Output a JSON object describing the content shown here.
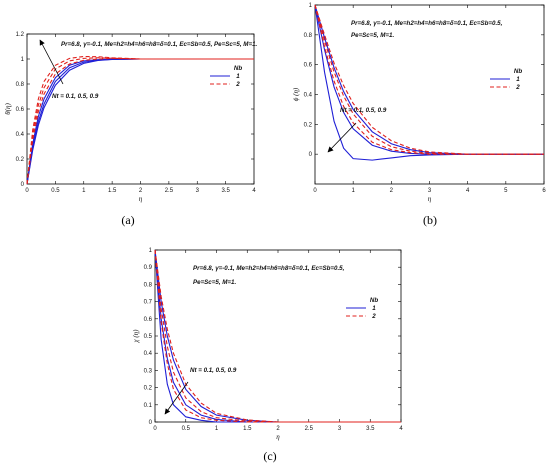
{
  "chart_data": [
    {
      "panel_label": "(a)",
      "type": "line",
      "ylabel": "θ(η)",
      "xlabel": "η",
      "xlim": [
        0,
        4
      ],
      "ylim": [
        0,
        1.2
      ],
      "xticks": [
        "0",
        "0.5",
        "1",
        "1.5",
        "2",
        "2.5",
        "3",
        "3.5",
        "4"
      ],
      "yticks": [
        "0",
        "0.2",
        "0.4",
        "0.6",
        "0.8",
        "1",
        "1.2"
      ],
      "annotation_params": [
        "Pr=6.8, γ=-0.1, Me=h2=h4=h6=h8=δ=0.1, Ec=Sb=0.5, Pe=Sc=5, M=1."
      ],
      "arrow_label": "Nt = 0.1, 0.5, 0.9",
      "legend_title": "Nb",
      "legend": [
        {
          "name": "1",
          "color": "#1f1fd6",
          "dash": "solid"
        },
        {
          "name": "2",
          "color": "#e0201c",
          "dash": "dashed"
        }
      ],
      "legend_position": "right",
      "grid": false,
      "series": [
        {
          "nb": "1",
          "nt": 0.1,
          "color": "#1f1fd6",
          "dash": "solid",
          "x": [
            0,
            0.1,
            0.2,
            0.3,
            0.5,
            0.75,
            1,
            1.25,
            1.5,
            2,
            3,
            4
          ],
          "y": [
            0,
            0.27,
            0.47,
            0.61,
            0.79,
            0.91,
            0.965,
            0.988,
            0.996,
            1.0,
            1.0,
            1.0
          ]
        },
        {
          "nb": "1",
          "nt": 0.5,
          "color": "#1f1fd6",
          "dash": "solid",
          "x": [
            0,
            0.1,
            0.2,
            0.3,
            0.5,
            0.75,
            1,
            1.25,
            1.5,
            2,
            3,
            4
          ],
          "y": [
            0,
            0.29,
            0.5,
            0.64,
            0.82,
            0.93,
            0.975,
            0.99,
            0.997,
            1.0,
            1.0,
            1.0
          ]
        },
        {
          "nb": "1",
          "nt": 0.9,
          "color": "#1f1fd6",
          "dash": "solid",
          "x": [
            0,
            0.1,
            0.2,
            0.3,
            0.5,
            0.75,
            1,
            1.25,
            1.5,
            2,
            3,
            4
          ],
          "y": [
            0,
            0.32,
            0.54,
            0.68,
            0.85,
            0.95,
            0.985,
            0.995,
            0.999,
            1.0,
            1.0,
            1.0
          ]
        },
        {
          "nb": "2",
          "nt": 0.1,
          "color": "#e0201c",
          "dash": "dashed",
          "x": [
            0,
            0.1,
            0.2,
            0.3,
            0.5,
            0.75,
            1,
            1.25,
            1.5,
            2,
            3,
            4
          ],
          "y": [
            0,
            0.35,
            0.58,
            0.72,
            0.88,
            0.96,
            0.99,
            1.0,
            1.005,
            1.0,
            1.0,
            1.0
          ]
        },
        {
          "nb": "2",
          "nt": 0.5,
          "color": "#e0201c",
          "dash": "dashed",
          "x": [
            0,
            0.1,
            0.2,
            0.3,
            0.5,
            0.75,
            1,
            1.25,
            1.5,
            2,
            3,
            4
          ],
          "y": [
            0,
            0.39,
            0.63,
            0.77,
            0.92,
            0.985,
            1.005,
            1.01,
            1.006,
            1.0,
            1.0,
            1.0
          ]
        },
        {
          "nb": "2",
          "nt": 0.9,
          "color": "#e0201c",
          "dash": "dashed",
          "x": [
            0,
            0.1,
            0.2,
            0.3,
            0.5,
            0.75,
            1,
            1.25,
            1.5,
            2,
            3,
            4
          ],
          "y": [
            0,
            0.43,
            0.68,
            0.82,
            0.95,
            1.005,
            1.02,
            1.018,
            1.01,
            1.0,
            1.0,
            1.0
          ]
        }
      ]
    },
    {
      "panel_label": "(b)",
      "type": "line",
      "ylabel": "ϕ (η)",
      "xlabel": "η",
      "xlim": [
        0,
        6
      ],
      "ylim": [
        -0.2,
        1
      ],
      "xticks": [
        "0",
        "1",
        "2",
        "3",
        "4",
        "5",
        "6"
      ],
      "yticks": [
        "0",
        "0.2",
        "0.4",
        "0.6",
        "0.8",
        "1"
      ],
      "annotation_params": [
        "Pr=6.8, γ=-0.1, Me=h2=h4=h6=h8=δ=0.1, Ec=Sb=0.5,",
        "Pe=Sc=5, M=1."
      ],
      "arrow_label": "Nt = 0.1, 0.5, 0.9",
      "legend_title": "Nb",
      "legend": [
        {
          "name": "1",
          "color": "#1f1fd6",
          "dash": "solid"
        },
        {
          "name": "2",
          "color": "#e0201c",
          "dash": "dashed"
        }
      ],
      "legend_position": "right",
      "grid": false,
      "series": [
        {
          "nb": "1",
          "nt": 0.1,
          "color": "#1f1fd6",
          "dash": "solid",
          "x": [
            0,
            0.25,
            0.5,
            0.75,
            1,
            1.5,
            2,
            2.5,
            3,
            4,
            6
          ],
          "y": [
            1,
            0.78,
            0.58,
            0.42,
            0.3,
            0.15,
            0.07,
            0.03,
            0.01,
            0,
            0
          ]
        },
        {
          "nb": "1",
          "nt": 0.5,
          "color": "#1f1fd6",
          "dash": "solid",
          "x": [
            0,
            0.25,
            0.5,
            0.75,
            1,
            1.5,
            2,
            2.5,
            3,
            4,
            6
          ],
          "y": [
            1,
            0.7,
            0.45,
            0.28,
            0.17,
            0.06,
            0.02,
            0.005,
            0,
            0,
            0
          ]
        },
        {
          "nb": "1",
          "nt": 0.9,
          "color": "#1f1fd6",
          "dash": "solid",
          "x": [
            0,
            0.25,
            0.5,
            0.75,
            1,
            1.5,
            2,
            2.5,
            3,
            4,
            6
          ],
          "y": [
            1,
            0.55,
            0.22,
            0.04,
            -0.03,
            -0.04,
            -0.025,
            -0.01,
            -0.005,
            0,
            0
          ]
        },
        {
          "nb": "2",
          "nt": 0.1,
          "color": "#e0201c",
          "dash": "dashed",
          "x": [
            0,
            0.25,
            0.5,
            0.75,
            1,
            1.5,
            2,
            2.5,
            3,
            4,
            6
          ],
          "y": [
            1,
            0.8,
            0.61,
            0.46,
            0.34,
            0.18,
            0.09,
            0.04,
            0.015,
            0,
            0
          ]
        },
        {
          "nb": "2",
          "nt": 0.5,
          "color": "#e0201c",
          "dash": "dashed",
          "x": [
            0,
            0.25,
            0.5,
            0.75,
            1,
            1.5,
            2,
            2.5,
            3,
            4,
            6
          ],
          "y": [
            1,
            0.76,
            0.55,
            0.39,
            0.27,
            0.12,
            0.05,
            0.02,
            0.005,
            0,
            0
          ]
        },
        {
          "nb": "2",
          "nt": 0.9,
          "color": "#e0201c",
          "dash": "dashed",
          "x": [
            0,
            0.25,
            0.5,
            0.75,
            1,
            1.5,
            2,
            2.5,
            3,
            4,
            6
          ],
          "y": [
            1,
            0.72,
            0.49,
            0.32,
            0.21,
            0.08,
            0.03,
            0.01,
            0,
            0,
            0
          ]
        }
      ]
    },
    {
      "panel_label": "(c)",
      "type": "line",
      "ylabel": "χ (η)",
      "xlabel": "η",
      "xlim": [
        0,
        4
      ],
      "ylim": [
        0,
        1
      ],
      "xticks": [
        "0",
        "0.5",
        "1",
        "1.5",
        "2",
        "2.5",
        "3",
        "3.5",
        "4"
      ],
      "yticks": [
        "0",
        "0.1",
        "0.2",
        "0.3",
        "0.4",
        "0.5",
        "0.6",
        "0.7",
        "0.8",
        "0.9",
        "1"
      ],
      "annotation_params": [
        "Pr=6.8, γ=-0.1, Me=h2=h4=h6=h8=δ=0.1, Ec=Sb=0.5,",
        "Pe=Sc=5, M=1."
      ],
      "arrow_label": "Nt = 0.1, 0.5, 0.9",
      "legend_title": "Nb",
      "legend": [
        {
          "name": "1",
          "color": "#1f1fd6",
          "dash": "solid"
        },
        {
          "name": "2",
          "color": "#e0201c",
          "dash": "dashed"
        }
      ],
      "legend_position": "right",
      "grid": false,
      "series": [
        {
          "nb": "1",
          "nt": 0.1,
          "color": "#1f1fd6",
          "dash": "solid",
          "x": [
            0,
            0.1,
            0.2,
            0.3,
            0.5,
            0.75,
            1,
            1.5,
            2,
            3,
            4
          ],
          "y": [
            1,
            0.7,
            0.5,
            0.36,
            0.19,
            0.09,
            0.04,
            0.01,
            0,
            0,
            0
          ]
        },
        {
          "nb": "1",
          "nt": 0.5,
          "color": "#1f1fd6",
          "dash": "solid",
          "x": [
            0,
            0.1,
            0.2,
            0.3,
            0.5,
            0.75,
            1,
            1.5,
            2,
            3,
            4
          ],
          "y": [
            1,
            0.6,
            0.37,
            0.23,
            0.1,
            0.04,
            0.015,
            0,
            0,
            0,
            0
          ]
        },
        {
          "nb": "1",
          "nt": 0.9,
          "color": "#1f1fd6",
          "dash": "solid",
          "x": [
            0,
            0.1,
            0.2,
            0.3,
            0.5,
            0.75,
            1,
            1.5,
            2,
            3,
            4
          ],
          "y": [
            1,
            0.48,
            0.22,
            0.1,
            0.03,
            0.01,
            0,
            0,
            0,
            0,
            0
          ]
        },
        {
          "nb": "2",
          "nt": 0.1,
          "color": "#e0201c",
          "dash": "dashed",
          "x": [
            0,
            0.1,
            0.2,
            0.3,
            0.5,
            0.75,
            1,
            1.5,
            2,
            3,
            4
          ],
          "y": [
            1,
            0.73,
            0.54,
            0.4,
            0.22,
            0.11,
            0.05,
            0.012,
            0,
            0,
            0
          ]
        },
        {
          "nb": "2",
          "nt": 0.5,
          "color": "#e0201c",
          "dash": "dashed",
          "x": [
            0,
            0.1,
            0.2,
            0.3,
            0.5,
            0.75,
            1,
            1.5,
            2,
            3,
            4
          ],
          "y": [
            1,
            0.66,
            0.44,
            0.29,
            0.14,
            0.06,
            0.025,
            0.005,
            0,
            0,
            0
          ]
        },
        {
          "nb": "2",
          "nt": 0.9,
          "color": "#e0201c",
          "dash": "dashed",
          "x": [
            0,
            0.1,
            0.2,
            0.3,
            0.5,
            0.75,
            1,
            1.5,
            2,
            3,
            4
          ],
          "y": [
            1,
            0.58,
            0.34,
            0.19,
            0.07,
            0.025,
            0.01,
            0,
            0,
            0,
            0
          ]
        }
      ]
    }
  ]
}
